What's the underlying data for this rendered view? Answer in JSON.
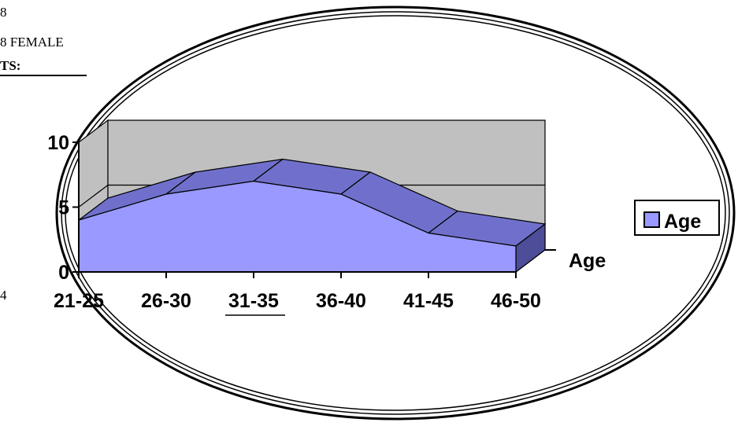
{
  "document": {
    "line1": "8",
    "line2": "8 FEMALE",
    "line3": "TS:",
    "line4": "4"
  },
  "colors": {
    "floor": "#c0c0c0",
    "back_wall": "#c0c0c0",
    "area_front": "#9999ff",
    "area_top": "#7070cc",
    "area_side": "#4d4d99",
    "legend_swatch": "#9999ff"
  },
  "chart_data": {
    "type": "area",
    "style": "3d",
    "categories": [
      "21-25",
      "26-30",
      "31-35",
      "36-40",
      "41-45",
      "46-50"
    ],
    "series": [
      {
        "name": "Age",
        "values": [
          4,
          6,
          7,
          6,
          3,
          2
        ]
      }
    ],
    "yticks": [
      0,
      5,
      10
    ],
    "ylim": [
      0,
      10
    ],
    "depth_axis_label": "Age",
    "legend": {
      "position": "right",
      "entries": [
        "Age"
      ]
    },
    "grid": true
  }
}
